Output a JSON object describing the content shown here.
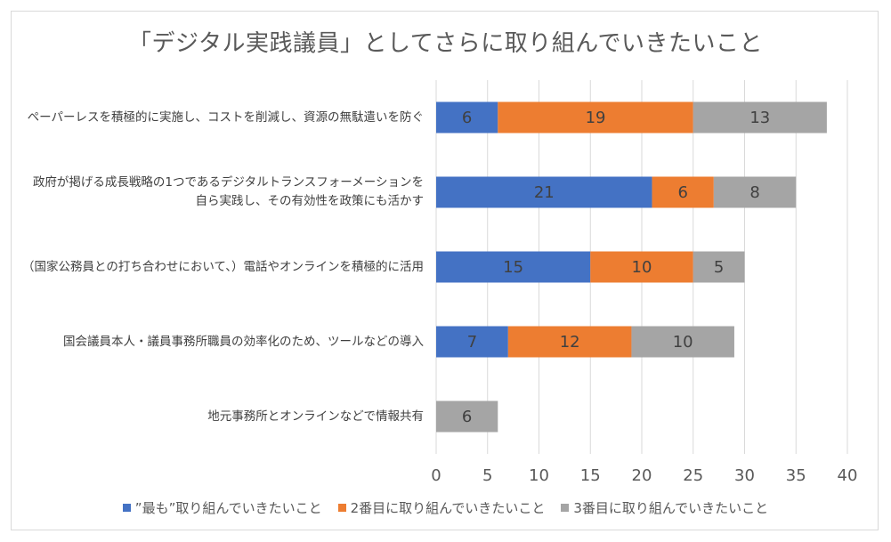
{
  "chart_data": {
    "type": "bar",
    "orientation": "horizontal",
    "stacked": true,
    "title": "「デジタル実践議員」としてさらに取り組んでいきたいこと",
    "categories": [
      "ペーパーレスを積極的に実施し、コストを削減し、資源の無駄遣いを防ぐ",
      "政府が掲げる成長戦略の1つであるデジタルトランスフォーメーションを自ら実践し、その有効性を政策にも活かす",
      "（国家公務員との打ち合わせにおいて、）電話やオンラインを積極的に活用",
      "国会議員本人・議員事務所職員の効率化のため、ツールなどの導入",
      "地元事務所とオンラインなどで情報共有"
    ],
    "series": [
      {
        "name": "”最も”取り組んでいきたいこと",
        "color": "#4472c4",
        "values": [
          6,
          21,
          15,
          7,
          0
        ]
      },
      {
        "name": "2番目に取り組んでいきたいこと",
        "color": "#ed7d31",
        "values": [
          19,
          6,
          10,
          12,
          0
        ]
      },
      {
        "name": "3番目に取り組んでいきたいこと",
        "color": "#a5a5a5",
        "values": [
          13,
          8,
          5,
          10,
          6
        ]
      }
    ],
    "xlim": [
      0,
      40
    ],
    "xticks": [
      0,
      5,
      10,
      15,
      20,
      25,
      30,
      35,
      40
    ],
    "grid": true,
    "legend_position": "bottom"
  }
}
